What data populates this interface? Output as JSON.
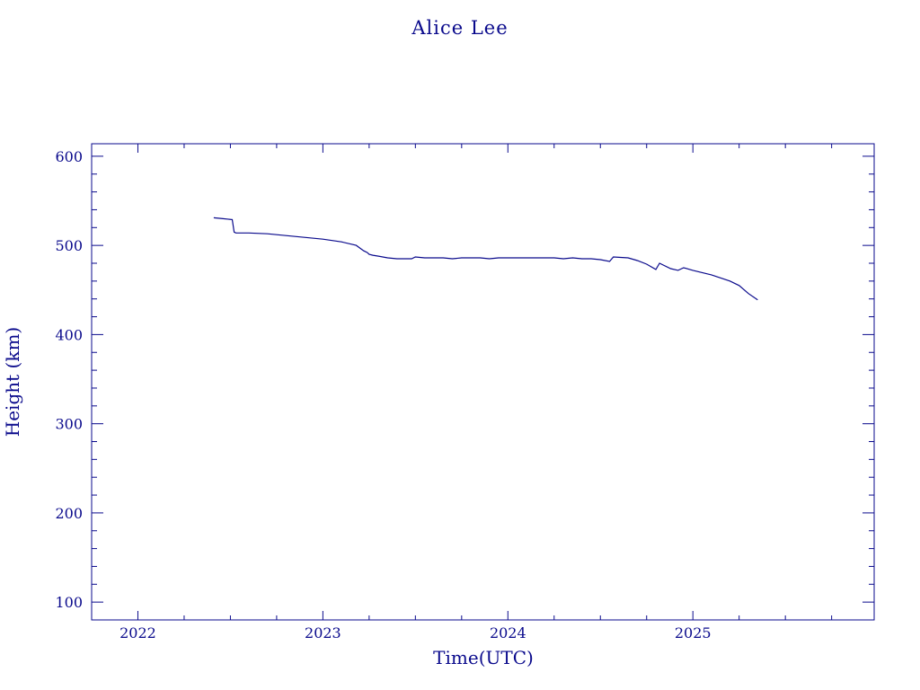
{
  "chart_data": {
    "type": "line",
    "title": "Alice Lee",
    "xlabel": "Time(UTC)",
    "ylabel": "Height (km)",
    "xlim": [
      2021.75,
      2025.98
    ],
    "ylim": [
      80,
      614
    ],
    "x_ticks": [
      2022,
      2023,
      2024,
      2025
    ],
    "y_ticks": [
      100,
      200,
      300,
      400,
      500,
      600
    ],
    "grid": false,
    "colors": {
      "axis": "#0a0a8c",
      "line": "#0a0a8c"
    },
    "series": [
      {
        "x": [
          2022.41,
          2022.46,
          2022.51,
          2022.52,
          2022.53,
          2022.6,
          2022.7,
          2022.8,
          2022.9,
          2023.0,
          2023.1,
          2023.18,
          2023.2,
          2023.22,
          2023.24,
          2023.25,
          2023.27,
          2023.3,
          2023.35,
          2023.4,
          2023.48,
          2023.5,
          2023.55,
          2023.6,
          2023.65,
          2023.7,
          2023.75,
          2023.8,
          2023.85,
          2023.9,
          2023.95,
          2024.0,
          2024.05,
          2024.1,
          2024.15,
          2024.2,
          2024.25,
          2024.3,
          2024.35,
          2024.4,
          2024.45,
          2024.5,
          2024.55,
          2024.57,
          2024.65,
          2024.7,
          2024.75,
          2024.8,
          2024.82,
          2024.88,
          2024.92,
          2024.95,
          2025.0,
          2025.1,
          2025.2,
          2025.25,
          2025.3,
          2025.35
        ],
        "y": [
          531,
          530,
          529,
          515,
          514,
          514,
          513,
          511,
          509,
          507,
          504,
          500,
          497,
          494,
          492,
          490,
          489,
          488,
          486,
          485,
          485,
          487,
          486,
          486,
          486,
          485,
          486,
          486,
          486,
          485,
          486,
          486,
          486,
          486,
          486,
          486,
          486,
          485,
          486,
          485,
          485,
          484,
          482,
          487,
          486,
          483,
          479,
          473,
          480,
          474,
          472,
          475,
          472,
          467,
          460,
          455,
          446,
          439
        ]
      }
    ]
  }
}
